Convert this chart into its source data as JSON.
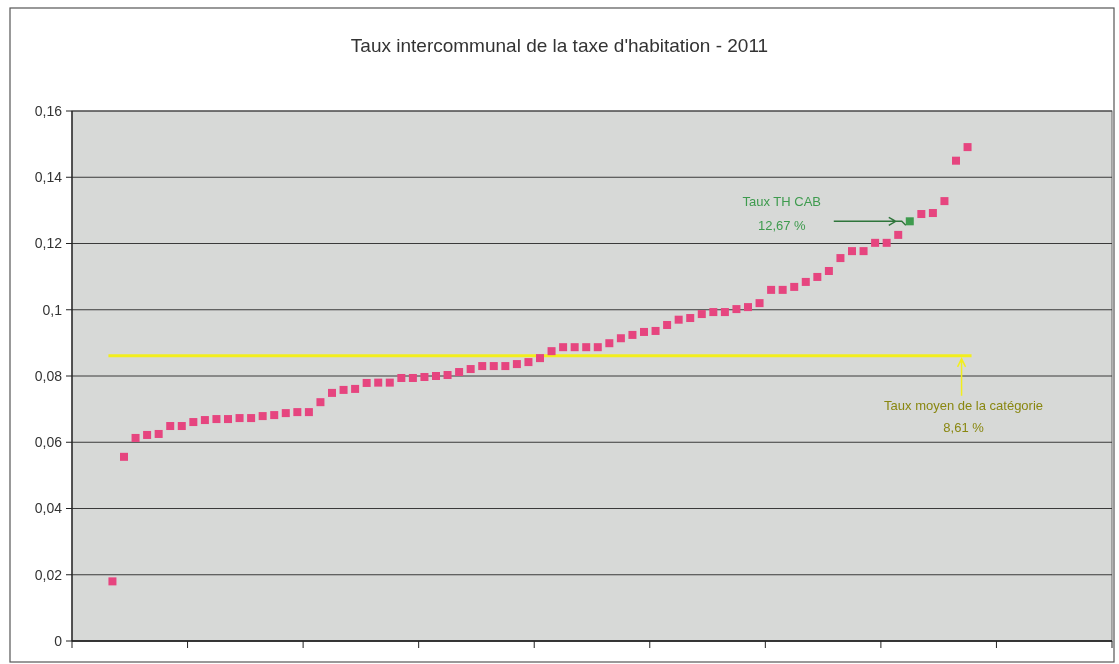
{
  "chart_data": {
    "type": "scatter",
    "title": "Taux intercommunal de la taxe d'habitation - 2011",
    "categories": [
      null,
      null,
      null,
      null,
      null,
      null,
      null,
      null,
      null,
      null,
      null,
      null,
      null,
      null,
      null,
      null,
      null,
      null,
      null,
      null,
      null,
      null,
      null,
      null,
      null,
      null,
      null,
      null,
      null,
      null,
      null,
      null,
      null,
      null,
      null,
      null,
      null,
      null,
      null,
      null,
      null,
      null,
      null,
      null,
      null,
      null,
      null,
      null,
      null,
      null,
      null,
      null,
      null,
      null,
      null,
      null,
      null,
      null,
      null,
      null,
      null,
      null,
      null,
      null,
      null,
      null,
      null,
      null,
      null,
      null,
      null,
      null,
      null,
      null,
      null,
      null,
      null,
      null,
      null,
      null,
      null,
      null,
      null,
      null,
      null,
      null,
      null,
      null,
      null,
      null
    ],
    "series": [
      {
        "color": "#e6457f",
        "values": [
          null,
          null,
          null,
          0.018,
          0.0556,
          0.0613,
          0.0622,
          0.0625,
          0.0649,
          0.0649,
          0.0661,
          0.0667,
          0.067,
          0.067,
          0.0673,
          0.0673,
          0.0679,
          0.0682,
          0.0688,
          0.0691,
          0.0691,
          0.0721,
          0.0749,
          0.0758,
          0.0761,
          0.0779,
          0.078,
          0.078,
          0.0794,
          0.0794,
          0.0797,
          0.08,
          0.0803,
          0.0812,
          0.0821,
          0.083,
          0.083,
          0.083,
          0.0836,
          0.0842,
          0.0854,
          0.0875,
          0.0887,
          0.0887,
          0.0887,
          0.0887,
          0.0899,
          0.0914,
          0.0924,
          0.0933,
          0.0936,
          0.0954,
          0.097,
          0.0975,
          0.0987,
          0.0993,
          0.0993,
          0.1002,
          0.1008,
          0.102,
          0.106,
          0.106,
          0.1069,
          0.1084,
          0.1099,
          0.1117,
          0.1156,
          0.1177,
          0.1177,
          0.1202,
          0.1202,
          0.1226,
          null,
          0.1289,
          0.1292,
          0.1328,
          0.145,
          0.1491,
          null,
          null,
          null,
          null,
          null,
          null,
          null,
          null,
          null,
          null,
          null,
          null
        ]
      },
      {
        "color": "#3e9b4e",
        "values": [
          null,
          null,
          null,
          null,
          null,
          null,
          null,
          null,
          null,
          null,
          null,
          null,
          null,
          null,
          null,
          null,
          null,
          null,
          null,
          null,
          null,
          null,
          null,
          null,
          null,
          null,
          null,
          null,
          null,
          null,
          null,
          null,
          null,
          null,
          null,
          null,
          null,
          null,
          null,
          null,
          null,
          null,
          null,
          null,
          null,
          null,
          null,
          null,
          null,
          null,
          null,
          null,
          null,
          null,
          null,
          null,
          null,
          null,
          null,
          null,
          null,
          null,
          null,
          null,
          null,
          null,
          null,
          null,
          null,
          null,
          null,
          null,
          0.1267,
          null,
          null,
          null,
          null,
          null,
          null,
          null,
          null,
          null,
          null,
          null,
          null,
          null,
          null,
          null,
          null,
          null
        ]
      }
    ],
    "ylim": [
      0,
      0.16
    ],
    "yticks": [
      0,
      {
        "value": 0.02,
        "label": "0,02"
      },
      {
        "value": 0.04,
        "label": "0,04"
      },
      {
        "value": 0.06,
        "label": "0,06"
      },
      {
        "value": 0.08,
        "label": "0,08"
      },
      {
        "value": 0.1,
        "label": "0,1"
      },
      {
        "value": 0.12,
        "label": "0,12"
      },
      {
        "value": 0.14,
        "label": "0,14"
      },
      {
        "value": 0.16,
        "label": "0,16"
      }
    ],
    "grid": "y",
    "marker": "square",
    "tick_labels": "y",
    "ref_lines": [
      {
        "axis": "y",
        "value": 0.0861,
        "label": "Taux moyen de la catégorie\n8,61 %",
        "color": "#f2ee1c"
      }
    ],
    "annotations": [
      "Taux TH CAB\n12,67 %"
    ]
  }
}
